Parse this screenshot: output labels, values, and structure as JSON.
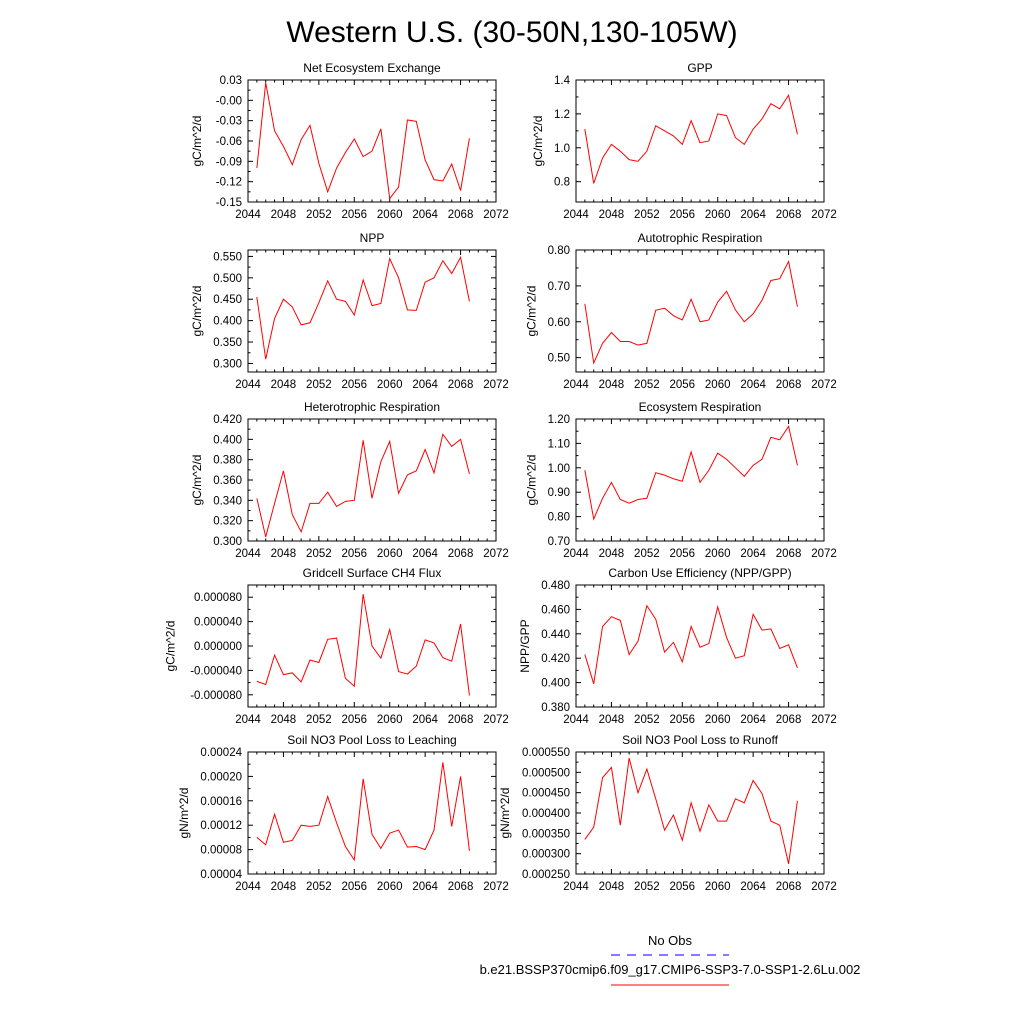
{
  "title": "Western U.S. (30-50N,130-105W)",
  "legend": {
    "entries": [
      {
        "label": "No Obs",
        "color": "#0000ff",
        "dash": "dashed"
      },
      {
        "label": "b.e21.BSSP370cmip6.f09_g17.CMIP6-SSP3-7.0-SSP1-2.6Lu.002",
        "color": "#ff0000",
        "dash": "solid"
      }
    ]
  },
  "chart_data": [
    {
      "type": "line",
      "title": "Net Ecosystem Exchange",
      "ylabel": "gC/m^2/d",
      "xlim": [
        2044,
        2072
      ],
      "ylim": [
        -0.15,
        0.03
      ],
      "xticks": [
        2044,
        2048,
        2052,
        2056,
        2060,
        2064,
        2068,
        2072
      ],
      "xtick_labels": [
        "2044",
        "2048",
        "2052",
        "2056",
        "2060",
        "2064",
        "2068",
        "2072"
      ],
      "yticks": [
        -0.15,
        -0.12,
        -0.09,
        -0.06,
        -0.03,
        0.0,
        0.03
      ],
      "ytick_labels": [
        "-0.15",
        "-0.12",
        "-0.09",
        "-0.06",
        "-0.03",
        "-0.00",
        "0.03"
      ],
      "x": [
        2045,
        2046,
        2047,
        2048,
        2049,
        2050,
        2051,
        2052,
        2053,
        2054,
        2055,
        2056,
        2057,
        2058,
        2059,
        2060,
        2061,
        2062,
        2063,
        2064,
        2065,
        2066,
        2067,
        2068,
        2069
      ],
      "values": [
        -0.1,
        0.026,
        -0.045,
        -0.068,
        -0.095,
        -0.058,
        -0.037,
        -0.093,
        -0.135,
        -0.1,
        -0.077,
        -0.057,
        -0.083,
        -0.075,
        -0.042,
        -0.145,
        -0.128,
        -0.029,
        -0.031,
        -0.088,
        -0.117,
        -0.119,
        -0.094,
        -0.133,
        -0.056
      ]
    },
    {
      "type": "line",
      "title": "GPP",
      "ylabel": "gC/m^2/d",
      "xlim": [
        2044,
        2072
      ],
      "ylim": [
        0.68,
        1.4
      ],
      "xticks": [
        2044,
        2048,
        2052,
        2056,
        2060,
        2064,
        2068,
        2072
      ],
      "xtick_labels": [
        "2044",
        "2048",
        "2052",
        "2056",
        "2060",
        "2064",
        "2068",
        "2072"
      ],
      "yticks": [
        0.8,
        1.0,
        1.2,
        1.4
      ],
      "ytick_labels": [
        "0.8",
        "1.0",
        "1.2",
        "1.4"
      ],
      "x": [
        2045,
        2046,
        2047,
        2048,
        2049,
        2050,
        2051,
        2052,
        2053,
        2054,
        2055,
        2056,
        2057,
        2058,
        2059,
        2060,
        2061,
        2062,
        2063,
        2064,
        2065,
        2066,
        2067,
        2068,
        2069
      ],
      "values": [
        1.11,
        0.79,
        0.94,
        1.02,
        0.98,
        0.93,
        0.92,
        0.98,
        1.13,
        1.1,
        1.07,
        1.02,
        1.16,
        1.03,
        1.04,
        1.2,
        1.19,
        1.06,
        1.02,
        1.11,
        1.17,
        1.26,
        1.23,
        1.31,
        1.08
      ]
    },
    {
      "type": "line",
      "title": "NPP",
      "ylabel": "gC/m^2/d",
      "xlim": [
        2044,
        2072
      ],
      "ylim": [
        0.28,
        0.565
      ],
      "xticks": [
        2044,
        2048,
        2052,
        2056,
        2060,
        2064,
        2068,
        2072
      ],
      "xtick_labels": [
        "2044",
        "2048",
        "2052",
        "2056",
        "2060",
        "2064",
        "2068",
        "2072"
      ],
      "yticks": [
        0.3,
        0.35,
        0.4,
        0.45,
        0.5,
        0.55
      ],
      "ytick_labels": [
        "0.300",
        "0.350",
        "0.400",
        "0.450",
        "0.500",
        "0.550"
      ],
      "x": [
        2045,
        2046,
        2047,
        2048,
        2049,
        2050,
        2051,
        2052,
        2053,
        2054,
        2055,
        2056,
        2057,
        2058,
        2059,
        2060,
        2061,
        2062,
        2063,
        2064,
        2065,
        2066,
        2067,
        2068,
        2069
      ],
      "values": [
        0.455,
        0.31,
        0.405,
        0.45,
        0.432,
        0.39,
        0.395,
        0.442,
        0.493,
        0.45,
        0.445,
        0.413,
        0.495,
        0.435,
        0.44,
        0.545,
        0.5,
        0.425,
        0.424,
        0.49,
        0.5,
        0.54,
        0.51,
        0.548,
        0.445
      ]
    },
    {
      "type": "line",
      "title": "Autotrophic Respiration",
      "ylabel": "gC/m^2/d",
      "xlim": [
        2044,
        2072
      ],
      "ylim": [
        0.46,
        0.8
      ],
      "xticks": [
        2044,
        2048,
        2052,
        2056,
        2060,
        2064,
        2068,
        2072
      ],
      "xtick_labels": [
        "2044",
        "2048",
        "2052",
        "2056",
        "2060",
        "2064",
        "2068",
        "2072"
      ],
      "yticks": [
        0.5,
        0.6,
        0.7,
        0.8
      ],
      "ytick_labels": [
        "0.50",
        "0.60",
        "0.70",
        "0.80"
      ],
      "x": [
        2045,
        2046,
        2047,
        2048,
        2049,
        2050,
        2051,
        2052,
        2053,
        2054,
        2055,
        2056,
        2057,
        2058,
        2059,
        2060,
        2061,
        2062,
        2063,
        2064,
        2065,
        2066,
        2067,
        2068,
        2069
      ],
      "values": [
        0.65,
        0.485,
        0.54,
        0.57,
        0.545,
        0.545,
        0.535,
        0.54,
        0.632,
        0.638,
        0.617,
        0.605,
        0.663,
        0.6,
        0.605,
        0.655,
        0.685,
        0.633,
        0.6,
        0.622,
        0.66,
        0.715,
        0.72,
        0.768,
        0.642
      ]
    },
    {
      "type": "line",
      "title": "Heterotrophic Respiration",
      "ylabel": "gC/m^2/d",
      "xlim": [
        2044,
        2072
      ],
      "ylim": [
        0.3,
        0.42
      ],
      "xticks": [
        2044,
        2048,
        2052,
        2056,
        2060,
        2064,
        2068,
        2072
      ],
      "xtick_labels": [
        "2044",
        "2048",
        "2052",
        "2056",
        "2060",
        "2064",
        "2068",
        "2072"
      ],
      "yticks": [
        0.3,
        0.32,
        0.34,
        0.36,
        0.38,
        0.4,
        0.42
      ],
      "ytick_labels": [
        "0.300",
        "0.320",
        "0.340",
        "0.360",
        "0.380",
        "0.400",
        "0.420"
      ],
      "x": [
        2045,
        2046,
        2047,
        2048,
        2049,
        2050,
        2051,
        2052,
        2053,
        2054,
        2055,
        2056,
        2057,
        2058,
        2059,
        2060,
        2061,
        2062,
        2063,
        2064,
        2065,
        2066,
        2067,
        2068,
        2069
      ],
      "values": [
        0.342,
        0.304,
        0.337,
        0.369,
        0.326,
        0.309,
        0.337,
        0.337,
        0.348,
        0.334,
        0.339,
        0.34,
        0.399,
        0.342,
        0.378,
        0.398,
        0.347,
        0.365,
        0.369,
        0.39,
        0.367,
        0.405,
        0.393,
        0.4,
        0.366
      ]
    },
    {
      "type": "line",
      "title": "Ecosystem Respiration",
      "ylabel": "gC/m^2/d",
      "xlim": [
        2044,
        2072
      ],
      "ylim": [
        0.7,
        1.2
      ],
      "xticks": [
        2044,
        2048,
        2052,
        2056,
        2060,
        2064,
        2068,
        2072
      ],
      "xtick_labels": [
        "2044",
        "2048",
        "2052",
        "2056",
        "2060",
        "2064",
        "2068",
        "2072"
      ],
      "yticks": [
        0.7,
        0.8,
        0.9,
        1.0,
        1.1,
        1.2
      ],
      "ytick_labels": [
        "0.70",
        "0.80",
        "0.90",
        "1.00",
        "1.10",
        "1.20"
      ],
      "x": [
        2045,
        2046,
        2047,
        2048,
        2049,
        2050,
        2051,
        2052,
        2053,
        2054,
        2055,
        2056,
        2057,
        2058,
        2059,
        2060,
        2061,
        2062,
        2063,
        2064,
        2065,
        2066,
        2067,
        2068,
        2069
      ],
      "values": [
        0.99,
        0.79,
        0.875,
        0.94,
        0.87,
        0.855,
        0.87,
        0.875,
        0.98,
        0.97,
        0.955,
        0.945,
        1.065,
        0.94,
        0.99,
        1.06,
        1.035,
        1.0,
        0.965,
        1.01,
        1.035,
        1.125,
        1.115,
        1.17,
        1.01
      ]
    },
    {
      "type": "line",
      "title": "Gridcell Surface CH4 Flux",
      "ylabel": "gC/m^2/d",
      "xlim": [
        2044,
        2072
      ],
      "ylim": [
        -0.0001,
        0.0001
      ],
      "xticks": [
        2044,
        2048,
        2052,
        2056,
        2060,
        2064,
        2068,
        2072
      ],
      "xtick_labels": [
        "2044",
        "2048",
        "2052",
        "2056",
        "2060",
        "2064",
        "2068",
        "2072"
      ],
      "yticks": [
        -8e-05,
        -4e-05,
        0.0,
        4e-05,
        8e-05
      ],
      "ytick_labels": [
        "-0.000080",
        "-0.000040",
        "0.000000",
        "0.000040",
        "0.000080"
      ],
      "x": [
        2045,
        2046,
        2047,
        2048,
        2049,
        2050,
        2051,
        2052,
        2053,
        2054,
        2055,
        2056,
        2057,
        2058,
        2059,
        2060,
        2061,
        2062,
        2063,
        2064,
        2065,
        2066,
        2067,
        2068,
        2069
      ],
      "values": [
        -5.8e-05,
        -6.3e-05,
        -1.5e-05,
        -4.7e-05,
        -4.4e-05,
        -5.9e-05,
        -2.3e-05,
        -2.7e-05,
        1.1e-05,
        1.3e-05,
        -5.3e-05,
        -6.6e-05,
        8.5e-05,
        0.0,
        -2e-05,
        2.7e-05,
        -4.2e-05,
        -4.6e-05,
        -3.3e-05,
        1e-05,
        5e-06,
        -1.9e-05,
        -2.5e-05,
        3.6e-05,
        -8.1e-05
      ]
    },
    {
      "type": "line",
      "title": "Carbon Use Efficiency (NPP/GPP)",
      "ylabel": "NPP/GPP",
      "xlim": [
        2044,
        2072
      ],
      "ylim": [
        0.38,
        0.48
      ],
      "xticks": [
        2044,
        2048,
        2052,
        2056,
        2060,
        2064,
        2068,
        2072
      ],
      "xtick_labels": [
        "2044",
        "2048",
        "2052",
        "2056",
        "2060",
        "2064",
        "2068",
        "2072"
      ],
      "yticks": [
        0.38,
        0.4,
        0.42,
        0.44,
        0.46,
        0.48
      ],
      "ytick_labels": [
        "0.380",
        "0.400",
        "0.420",
        "0.440",
        "0.460",
        "0.480"
      ],
      "x": [
        2045,
        2046,
        2047,
        2048,
        2049,
        2050,
        2051,
        2052,
        2053,
        2054,
        2055,
        2056,
        2057,
        2058,
        2059,
        2060,
        2061,
        2062,
        2063,
        2064,
        2065,
        2066,
        2067,
        2068,
        2069
      ],
      "values": [
        0.423,
        0.399,
        0.446,
        0.454,
        0.451,
        0.423,
        0.434,
        0.463,
        0.452,
        0.425,
        0.433,
        0.417,
        0.446,
        0.429,
        0.432,
        0.462,
        0.437,
        0.42,
        0.422,
        0.456,
        0.443,
        0.444,
        0.428,
        0.431,
        0.412
      ]
    },
    {
      "type": "line",
      "title": "Soil NO3 Pool Loss to Leaching",
      "ylabel": "gN/m^2/d",
      "xlim": [
        2044,
        2072
      ],
      "ylim": [
        4e-05,
        0.00024
      ],
      "xticks": [
        2044,
        2048,
        2052,
        2056,
        2060,
        2064,
        2068,
        2072
      ],
      "xtick_labels": [
        "2044",
        "2048",
        "2052",
        "2056",
        "2060",
        "2064",
        "2068",
        "2072"
      ],
      "yticks": [
        4e-05,
        8e-05,
        0.00012,
        0.00016,
        0.0002,
        0.00024
      ],
      "ytick_labels": [
        "0.00004",
        "0.00008",
        "0.00012",
        "0.00016",
        "0.00020",
        "0.00024"
      ],
      "x": [
        2045,
        2046,
        2047,
        2048,
        2049,
        2050,
        2051,
        2052,
        2053,
        2054,
        2055,
        2056,
        2057,
        2058,
        2059,
        2060,
        2061,
        2062,
        2063,
        2064,
        2065,
        2066,
        2067,
        2068,
        2069
      ],
      "values": [
        0.0001,
        8.8e-05,
        0.000138,
        9.2e-05,
        9.5e-05,
        0.00012,
        0.000118,
        0.00012,
        0.000167,
        0.000124,
        8.5e-05,
        6.3e-05,
        0.000196,
        0.000105,
        8.2e-05,
        0.000107,
        0.000112,
        8.4e-05,
        8.5e-05,
        8e-05,
        0.000112,
        0.000223,
        0.000118,
        0.0002,
        7.8e-05
      ]
    },
    {
      "type": "line",
      "title": "Soil NO3 Pool Loss to Runoff",
      "ylabel": "gN/m^2/d",
      "xlim": [
        2044,
        2072
      ],
      "ylim": [
        0.00025,
        0.00055
      ],
      "xticks": [
        2044,
        2048,
        2052,
        2056,
        2060,
        2064,
        2068,
        2072
      ],
      "xtick_labels": [
        "2044",
        "2048",
        "2052",
        "2056",
        "2060",
        "2064",
        "2068",
        "2072"
      ],
      "yticks": [
        0.00025,
        0.0003,
        0.00035,
        0.0004,
        0.00045,
        0.0005,
        0.00055
      ],
      "ytick_labels": [
        "0.000250",
        "0.000300",
        "0.000350",
        "0.000400",
        "0.000450",
        "0.000500",
        "0.000550"
      ],
      "x": [
        2045,
        2046,
        2047,
        2048,
        2049,
        2050,
        2051,
        2052,
        2053,
        2054,
        2055,
        2056,
        2057,
        2058,
        2059,
        2060,
        2061,
        2062,
        2063,
        2064,
        2065,
        2066,
        2067,
        2068,
        2069
      ],
      "values": [
        0.000335,
        0.000365,
        0.000487,
        0.000512,
        0.00037,
        0.000535,
        0.00045,
        0.000508,
        0.000435,
        0.000358,
        0.000395,
        0.000333,
        0.000425,
        0.000355,
        0.00042,
        0.00038,
        0.00038,
        0.000435,
        0.000425,
        0.00048,
        0.000448,
        0.00038,
        0.00037,
        0.000275,
        0.00043
      ]
    }
  ]
}
